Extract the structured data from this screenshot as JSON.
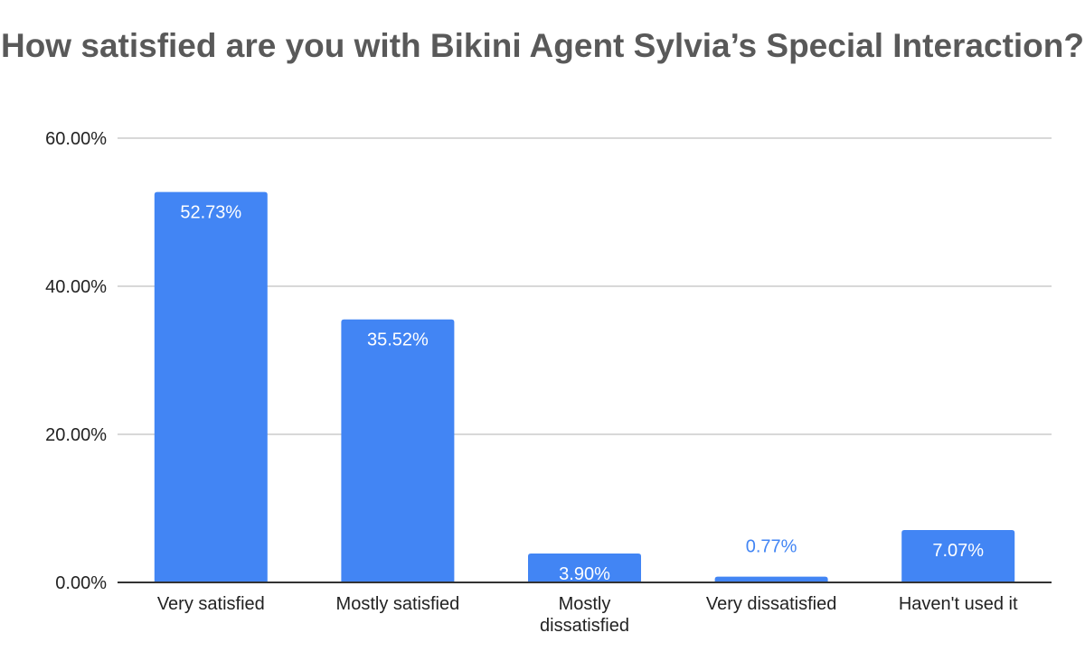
{
  "chart_data": {
    "type": "bar",
    "title": "How satisfied are you with Bikini Agent Sylvia’s Special Interaction?",
    "categories": [
      "Very satisfied",
      "Mostly satisfied",
      "Mostly dissatisfied",
      "Very dissatisfied",
      "Haven't used it"
    ],
    "values": [
      52.73,
      35.52,
      3.9,
      0.77,
      7.07
    ],
    "data_labels": [
      "52.73%",
      "35.52%",
      "3.90%",
      "0.77%",
      "7.07%"
    ],
    "ylim": [
      0,
      60
    ],
    "yticks": [
      0,
      20,
      40,
      60
    ],
    "ytick_labels": [
      "0.00%",
      "20.00%",
      "40.00%",
      "60.00%"
    ],
    "xlabel": "",
    "ylabel": "",
    "grid": true,
    "bar_color": "#4285f4"
  }
}
